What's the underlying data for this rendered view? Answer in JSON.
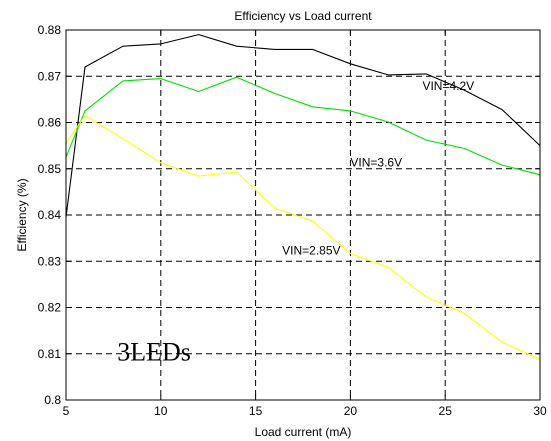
{
  "chart_data": {
    "type": "line",
    "title": "Efficiency  vs  Load current",
    "xlabel": "Load current  (mA)",
    "ylabel": "Efficiency  (%)",
    "xlim": [
      5,
      30
    ],
    "ylim": [
      0.8,
      0.88
    ],
    "xticks": [
      5,
      10,
      15,
      20,
      25,
      30
    ],
    "yticks": [
      0.8,
      0.81,
      0.82,
      0.83,
      0.84,
      0.85,
      0.86,
      0.87,
      0.88
    ],
    "xtick_labels": [
      "5",
      "10",
      "15",
      "20",
      "25",
      "30"
    ],
    "ytick_labels": [
      "0.8",
      "0.81",
      "0.82",
      "0.83",
      "0.84",
      "0.85",
      "0.86",
      "0.87",
      "0.88"
    ],
    "grid": true,
    "grid_style": "dashed",
    "series": [
      {
        "name": "VIN=4.2V",
        "color": "#000000",
        "x": [
          5,
          6,
          8,
          10,
          12,
          14,
          16,
          18,
          20,
          22,
          24,
          26,
          28,
          30
        ],
        "y": [
          0.8395,
          0.872,
          0.8765,
          0.877,
          0.879,
          0.8765,
          0.8758,
          0.8758,
          0.8727,
          0.8703,
          0.8705,
          0.867,
          0.8628,
          0.855
        ]
      },
      {
        "name": "VIN=3.6V",
        "color": "#00e000",
        "x": [
          5,
          6,
          8,
          10,
          12,
          14,
          16,
          18,
          20,
          22,
          24,
          26,
          28,
          30
        ],
        "y": [
          0.8525,
          0.8625,
          0.869,
          0.8695,
          0.8667,
          0.8698,
          0.8663,
          0.8634,
          0.8625,
          0.8601,
          0.8562,
          0.8544,
          0.8508,
          0.8487
        ]
      },
      {
        "name": "VIN=2.85V",
        "color": "#ffff00",
        "x": [
          5,
          6,
          8,
          10,
          12,
          14,
          16,
          18,
          20,
          22,
          24,
          26,
          28,
          30
        ],
        "y": [
          0.8555,
          0.8615,
          0.8565,
          0.8513,
          0.8484,
          0.8493,
          0.8415,
          0.8387,
          0.8317,
          0.8287,
          0.8223,
          0.8187,
          0.8125,
          0.8088
        ]
      }
    ],
    "annotations": [
      {
        "text": "VIN=4.2V",
        "x": 23.8,
        "y": 0.867
      },
      {
        "text": "VIN=3.6V",
        "x": 20.0,
        "y": 0.8505
      },
      {
        "text": "VIN=2.85V",
        "x": 16.4,
        "y": 0.8315
      },
      {
        "text": "3LEDs",
        "x": 7.7,
        "y": 0.8085,
        "style": "large"
      }
    ]
  }
}
